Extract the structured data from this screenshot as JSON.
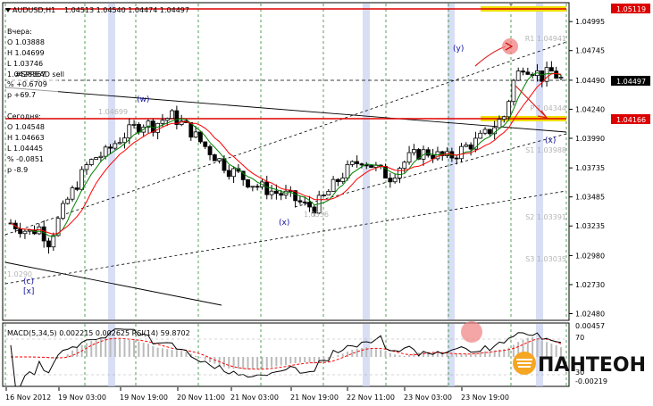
{
  "header": {
    "symbol": "AUDUSD,H1",
    "ohlc": "1.04513 1.04540 1.04474 1.04497"
  },
  "info_panel": {
    "yesterday_title": "Вчера:",
    "yesterday_o": "O 1.03888",
    "yesterday_h": "H 1.04699",
    "yesterday_l": "L 1.03746",
    "indicator_name": "#SPREAD sell",
    "indicator_value": "1.0428367",
    "yesterday_pct": "% +0.6709",
    "yesterday_p": "p +69.7",
    "today_title": "Сегодня:",
    "today_o": "O 1.04548",
    "today_h": "H 1.04663",
    "today_l": "L 1.04445",
    "today_pct": "% -0.0851",
    "today_p": "p -8.9"
  },
  "pivots": {
    "r1": "R1 1.04941",
    "p": "P 1.04344",
    "s1": "S1 1.03988",
    "s2": "S2 1.03391",
    "s3": "S3 1.03035"
  },
  "price_labels": {
    "top": "1.05119",
    "current": "1.04497",
    "level": "1.04166"
  },
  "wave_labels": {
    "w": "(w)",
    "x1": "(x)",
    "y": "(y)",
    "x2": "(x)",
    "c": "(c)",
    "xb": "[x]"
  },
  "small_labels": {
    "a": "1.04699",
    "b": "1.0336",
    "c": "1.0290"
  },
  "indicator": {
    "title": "MACD(5,34,5) 0.002215 0.002625  RSI(14) 59.8702"
  },
  "logo": {
    "text": "ПАНТЕОН"
  },
  "colors": {
    "background": "#ffffff",
    "grid": "#2a8a2a",
    "bull": "#ffffff",
    "bear": "#000000",
    "ma_red": "#ff0000",
    "ma_green": "#008000",
    "level_red": "#dd0000",
    "yellow": "#f0e000",
    "session_band": "#c8d0f0",
    "macd_signal": "#ff0000"
  },
  "chart_data": {
    "type": "candlestick",
    "symbol": "AUDUSD",
    "timeframe": "H1",
    "y_ticks": [
      "1.04995",
      "1.04745",
      "1.04490",
      "1.04240",
      "1.03990",
      "1.03735",
      "1.03485",
      "1.03235",
      "1.02980",
      "1.02730",
      "1.02480"
    ],
    "y_range": [
      1.0243,
      1.0515
    ],
    "x_ticks": [
      "16 Nov 2012",
      "19 Nov 03:00",
      "19 Nov 19:00",
      "20 Nov 11:00",
      "21 Nov 03:00",
      "21 Nov 19:00",
      "22 Nov 11:00",
      "23 Nov 03:00",
      "23 Nov 19:00"
    ],
    "horizontal_levels": [
      1.05119,
      1.04166
    ],
    "current_price": 1.04497,
    "pivot_levels": {
      "R1": 1.04941,
      "P": 1.04344,
      "S1": 1.03988,
      "S2": 1.03391,
      "S3": 1.03035
    },
    "close_path": [
      [
        0,
        1.0326
      ],
      [
        2,
        1.0322
      ],
      [
        4,
        1.0318
      ],
      [
        6,
        1.0322
      ],
      [
        8,
        1.031
      ],
      [
        10,
        1.0328
      ],
      [
        12,
        1.0346
      ],
      [
        14,
        1.036
      ],
      [
        16,
        1.0375
      ],
      [
        18,
        1.0383
      ],
      [
        20,
        1.0386
      ],
      [
        22,
        1.0395
      ],
      [
        24,
        1.0402
      ],
      [
        26,
        1.0408
      ],
      [
        28,
        1.0412
      ],
      [
        30,
        1.041
      ],
      [
        32,
        1.0415
      ],
      [
        34,
        1.0418
      ],
      [
        36,
        1.0412
      ],
      [
        38,
        1.0405
      ],
      [
        40,
        1.0396
      ],
      [
        42,
        1.0388
      ],
      [
        44,
        1.038
      ],
      [
        46,
        1.0372
      ],
      [
        48,
        1.0368
      ],
      [
        50,
        1.0362
      ],
      [
        52,
        1.0358
      ],
      [
        54,
        1.0355
      ],
      [
        56,
        1.0352
      ],
      [
        58,
        1.035
      ],
      [
        60,
        1.0346
      ],
      [
        62,
        1.0341
      ],
      [
        64,
        1.034
      ],
      [
        66,
        1.0348
      ],
      [
        68,
        1.0358
      ],
      [
        70,
        1.0368
      ],
      [
        72,
        1.0375
      ],
      [
        74,
        1.0381
      ],
      [
        76,
        1.0376
      ],
      [
        78,
        1.037
      ],
      [
        80,
        1.0366
      ],
      [
        82,
        1.0375
      ],
      [
        84,
        1.0382
      ],
      [
        86,
        1.0386
      ],
      [
        88,
        1.0387
      ],
      [
        90,
        1.0384
      ],
      [
        92,
        1.0382
      ],
      [
        94,
        1.0386
      ],
      [
        96,
        1.0392
      ],
      [
        98,
        1.0396
      ],
      [
        100,
        1.0402
      ],
      [
        102,
        1.041
      ],
      [
        104,
        1.0418
      ],
      [
        106,
        1.0448
      ],
      [
        108,
        1.0462
      ],
      [
        110,
        1.0458
      ],
      [
        112,
        1.0452
      ],
      [
        114,
        1.0456
      ],
      [
        116,
        1.045
      ]
    ],
    "indicators": {
      "macd": {
        "params": "5,34,5",
        "main": 0.002215,
        "signal": 0.002625
      },
      "rsi": {
        "period": 14,
        "value": 59.8702
      },
      "panel_ticks": [
        "0.00457",
        "70",
        "30",
        "-0.00219"
      ]
    }
  }
}
